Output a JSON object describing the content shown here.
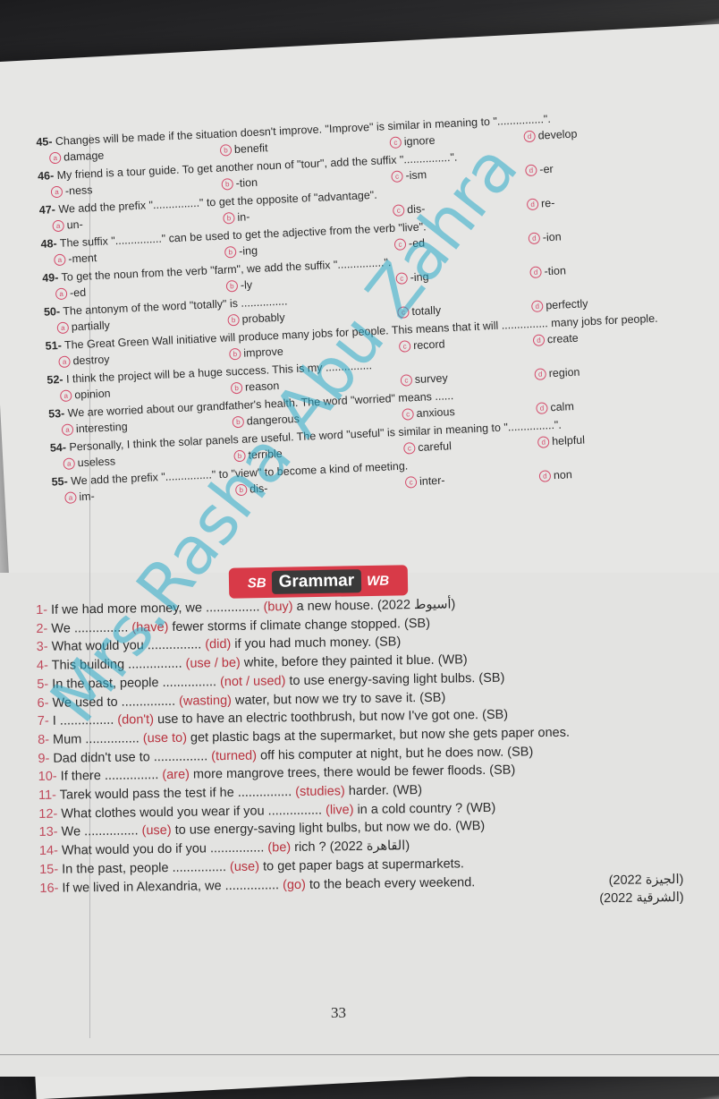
{
  "mcq": [
    {
      "num": "45-",
      "stem": "Changes will be made if the situation doesn't improve. \"Improve\" is similar in meaning to \"...............\".",
      "options": [
        "damage",
        "benefit",
        "ignore",
        "develop"
      ]
    },
    {
      "num": "46-",
      "stem": "My friend is a tour guide. To get another noun of \"tour\", add the suffix \"...............\".",
      "options": [
        "-ness",
        "-tion",
        "-ism",
        "-er"
      ]
    },
    {
      "num": "47-",
      "stem": "We add the prefix \"...............\" to get the opposite of \"advantage\".",
      "options": [
        "un-",
        "in-",
        "dis-",
        "re-"
      ]
    },
    {
      "num": "48-",
      "stem": "The suffix \"...............\" can be used to get the adjective from the verb \"live\".",
      "options": [
        "-ment",
        "-ing",
        "-ed",
        "-ion"
      ]
    },
    {
      "num": "49-",
      "stem": "To get the noun from the verb \"farm\", we add the suffix \"...............\".",
      "options": [
        "-ed",
        "-ly",
        "-ing",
        "-tion"
      ]
    },
    {
      "num": "50-",
      "stem": "The antonym of the word \"totally\" is ...............",
      "options": [
        "partially",
        "probably",
        "totally",
        "perfectly"
      ]
    },
    {
      "num": "51-",
      "stem": "The Great Green Wall initiative will produce many jobs for people. This means that it will ............... many jobs for people.",
      "options": [
        "destroy",
        "improve",
        "record",
        "create"
      ]
    },
    {
      "num": "52-",
      "stem": "I think the project will be a huge success. This is my ...............",
      "options": [
        "opinion",
        "reason",
        "survey",
        "region"
      ]
    },
    {
      "num": "53-",
      "stem": "We are worried about our grandfather's health. The word \"worried\" means ......",
      "options": [
        "interesting",
        "dangerous",
        "anxious",
        "calm"
      ]
    },
    {
      "num": "54-",
      "stem": "Personally, I think the solar panels are useful. The word \"useful\" is similar in meaning to \"...............\".",
      "options": [
        "useless",
        "terrible",
        "careful",
        "helpful"
      ]
    },
    {
      "num": "55-",
      "stem": "We add the prefix \"...............\" to \"view\" to become a kind of meeting.",
      "options": [
        "im-",
        "dis-",
        "inter-",
        "non"
      ]
    }
  ],
  "option_letters": [
    "a",
    "b",
    "c",
    "d"
  ],
  "banner": {
    "left": "SB",
    "title": "Grammar",
    "right": "WB"
  },
  "grammar": [
    {
      "num": "1-",
      "before": "If we had more money, we ...............",
      "verb": "(buy)",
      "after": " a new house.",
      "src": "(2022 أسيوط)"
    },
    {
      "num": "2-",
      "before": "We ...............",
      "verb": "(have)",
      "after": " fewer storms if climate change stopped.",
      "src": "(SB)"
    },
    {
      "num": "3-",
      "before": "What would you ...............",
      "verb": "(did)",
      "after": " if you had much money.",
      "src": "(SB)"
    },
    {
      "num": "4-",
      "before": "This building ...............",
      "verb": "(use / be)",
      "after": " white, before they painted it blue.",
      "src": "(WB)"
    },
    {
      "num": "5-",
      "before": "In the past, people ...............",
      "verb": "(not / used)",
      "after": " to use energy-saving light bulbs.",
      "src": "(SB)"
    },
    {
      "num": "6-",
      "before": "We used to ...............",
      "verb": "(wasting)",
      "after": " water, but now we try to save it.",
      "src": "(SB)"
    },
    {
      "num": "7-",
      "before": "I ...............",
      "verb": "(don't)",
      "after": " use to have an electric toothbrush, but now I've got one.",
      "src": "(SB)"
    },
    {
      "num": "8-",
      "before": "Mum ...............",
      "verb": "(use to)",
      "after": " get plastic bags at the supermarket, but now she gets paper ones.",
      "src": ""
    },
    {
      "num": "9-",
      "before": "Dad didn't use to ...............",
      "verb": "(turned)",
      "after": " off his computer at night, but he does now.",
      "src": "(SB)"
    },
    {
      "num": "10-",
      "before": "If there ...............",
      "verb": "(are)",
      "after": " more mangrove trees, there would be fewer floods.",
      "src": "(SB)"
    },
    {
      "num": "11-",
      "before": "Tarek would pass the test if he ...............",
      "verb": "(studies)",
      "after": " harder.",
      "src": "(WB)"
    },
    {
      "num": "12-",
      "before": "What clothes would you wear if you ...............",
      "verb": "(live)",
      "after": " in a cold country ?",
      "src": "(WB)"
    },
    {
      "num": "13-",
      "before": "We ...............",
      "verb": "(use)",
      "after": " to use energy-saving light bulbs, but now we do.",
      "src": "(WB)"
    },
    {
      "num": "14-",
      "before": "What would you do if you ...............",
      "verb": "(be)",
      "after": " rich ?",
      "src": "(2022 القاهرة)"
    },
    {
      "num": "15-",
      "before": "In the past, people ...............",
      "verb": "(use)",
      "after": " to get paper bags at supermarkets.",
      "src": "(2022 الجيزة)"
    },
    {
      "num": "16-",
      "before": "If we lived in Alexandria, we ...............",
      "verb": "(go)",
      "after": " to the beach every weekend.",
      "src": "(2022 الشرقية)"
    }
  ],
  "page_number": "33",
  "watermark": "Mrs.Rasha Abu Zahra",
  "colors": {
    "accent_red": "#d83a48",
    "verb_red": "#b8323e",
    "watermark": "#28aac8"
  }
}
